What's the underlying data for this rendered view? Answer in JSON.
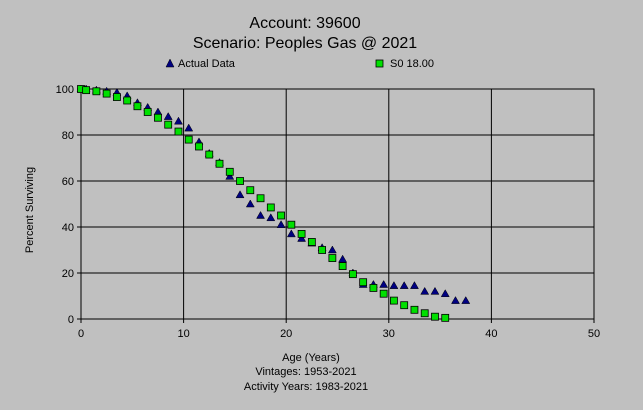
{
  "chart_data": {
    "type": "scatter",
    "title": "Account: 39600",
    "subtitle": "Scenario: Peoples Gas @ 2021",
    "xlabel": "Age (Years)",
    "ylabel": "Percent Surviving",
    "footer": [
      "Vintages: 1953-2021",
      "Activity Years: 1983-2021"
    ],
    "xlim": [
      0,
      50
    ],
    "ylim": [
      0,
      100
    ],
    "xticks": [
      "0",
      "10",
      "20",
      "30",
      "40",
      "50"
    ],
    "yticks": [
      "0",
      "20",
      "40",
      "60",
      "80",
      "100"
    ],
    "grid": true,
    "legend_position": "top",
    "series": [
      {
        "name": "Actual Data",
        "marker": "triangle",
        "color": "#000080",
        "x": [
          0,
          0.5,
          1.5,
          2.5,
          3.5,
          4.5,
          5.5,
          6.5,
          7.5,
          8.5,
          9.5,
          10.5,
          11.5,
          12.5,
          13.5,
          14.5,
          15.5,
          16.5,
          17.5,
          18.5,
          19.5,
          20.5,
          21.5,
          22.5,
          23.5,
          24.5,
          25.5,
          26.5,
          27.5,
          28.5,
          29.5,
          30.5,
          31.5,
          32.5,
          33.5,
          34.5,
          35.5,
          36.5,
          37.5
        ],
        "y": [
          100,
          100,
          99.5,
          99,
          98.5,
          97,
          94,
          92,
          90,
          88,
          86,
          83,
          77,
          72,
          68,
          62,
          54,
          50,
          45,
          44,
          41,
          37,
          35,
          33,
          31,
          30,
          26,
          20,
          15,
          15,
          15,
          14.5,
          14.5,
          14.5,
          12,
          12,
          11,
          8,
          8
        ]
      },
      {
        "name": "S0 18.00",
        "marker": "square",
        "color": "#00e000",
        "x": [
          0,
          0.5,
          1.5,
          2.5,
          3.5,
          4.5,
          5.5,
          6.5,
          7.5,
          8.5,
          9.5,
          10.5,
          11.5,
          12.5,
          13.5,
          14.5,
          15.5,
          16.5,
          17.5,
          18.5,
          19.5,
          20.5,
          21.5,
          22.5,
          23.5,
          24.5,
          25.5,
          26.5,
          27.5,
          28.5,
          29.5,
          30.5,
          31.5,
          32.5,
          33.5,
          34.5,
          35.5
        ],
        "y": [
          100,
          99.5,
          99,
          98,
          96.5,
          95,
          92.5,
          90,
          87.5,
          84.5,
          81.5,
          78,
          75,
          71.5,
          67.5,
          64,
          60,
          56,
          52.5,
          48.5,
          45,
          41,
          37,
          33.5,
          30,
          26.5,
          23,
          19.5,
          16,
          13.5,
          11,
          8,
          6,
          4,
          2.5,
          1,
          0.5
        ]
      }
    ]
  }
}
